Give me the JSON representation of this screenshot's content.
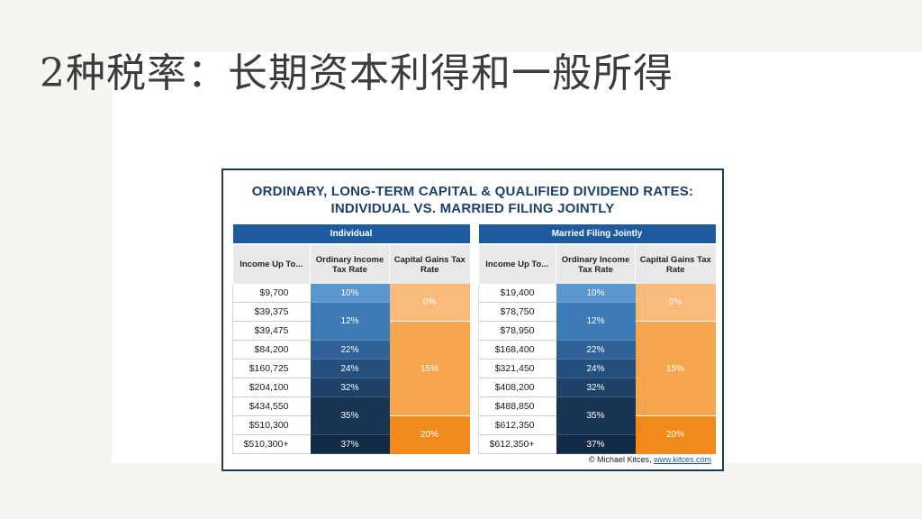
{
  "slide": {
    "title": "2种税率：长期资本利得和一般所得"
  },
  "card": {
    "title_line1": "ORDINARY, LONG-TERM CAPITAL & QUALIFIED DIVIDEND RATES:",
    "title_line2": "INDIVIDUAL VS. MARRIED FILING JOINTLY",
    "credit_text": "© Michael Kitces,",
    "credit_link": "www.kitces.com"
  },
  "columns": {
    "income": "Income Up To...",
    "ordinary": "Ordinary Income Tax Rate",
    "capital": "Capital Gains Tax Rate"
  },
  "individual": {
    "header": "Individual",
    "amounts": [
      "$9,700",
      "$39,375",
      "$39,475",
      "$84,200",
      "$160,725",
      "$204,100",
      "$434,550",
      "$510,300",
      "$510,300+"
    ]
  },
  "married": {
    "header": "Married Filing Jointly",
    "amounts": [
      "$19,400",
      "$78,750",
      "$78,950",
      "$168,400",
      "$321,450",
      "$408,200",
      "$488,850",
      "$612,350",
      "$612,350+"
    ]
  },
  "ordinary_rates": [
    "10%",
    "12%",
    "22%",
    "24%",
    "32%",
    "35%",
    "37%"
  ],
  "capital_rates": [
    "0%",
    "15%",
    "20%"
  ],
  "colors": {
    "header_blue": "#1f5a9f",
    "rate_10": "#5b96cc",
    "rate_12": "#3e7bb6",
    "rate_22": "#2f6196",
    "rate_24": "#244f7d",
    "rate_32": "#1d4168",
    "rate_35": "#173454",
    "rate_37": "#112a46",
    "cg_0": "#f8bb7a",
    "cg_15": "#f7a64f",
    "cg_20": "#f28a1b"
  }
}
